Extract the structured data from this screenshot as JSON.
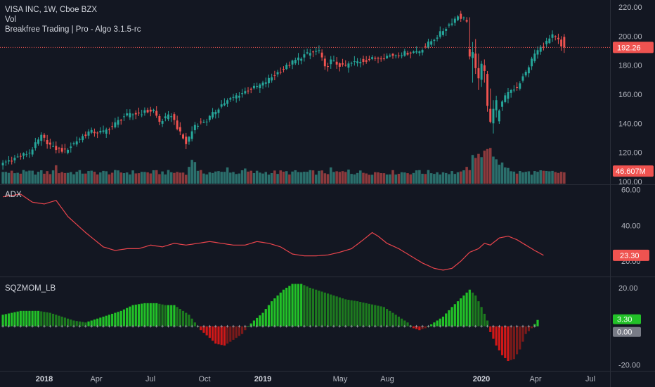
{
  "legend": {
    "symbol_line": "VISA INC, 1W, Cboe BZX",
    "vol_label": "Vol",
    "indicator_label": "Breakfree Trading | Pro - Algo 3.1.5-rc"
  },
  "colors": {
    "background": "#131722",
    "up": "#26a69a",
    "down": "#ef5350",
    "vol_up": "#2b6f6c",
    "vol_down": "#8c3a3d",
    "adx_line": "#e8444c",
    "sqz_strong_up": "#22c128",
    "sqz_weak_up": "#1d7a1f",
    "sqz_strong_down": "#d01818",
    "sqz_weak_down": "#7a1a1a",
    "axis_text": "#b2b5be",
    "separator": "#2a2e39"
  },
  "chart_data": [
    {
      "type": "candlestick",
      "pane": "price",
      "x_ticks": [
        "2018",
        "Apr",
        "Jul",
        "Oct",
        "2019",
        "May",
        "Aug",
        "2020",
        "Apr",
        "Jul"
      ],
      "y_ticks": [
        "220.00",
        "200.00",
        "180.00",
        "160.00",
        "140.00",
        "120.00",
        "100.00"
      ],
      "ylim": [
        98,
        222
      ],
      "last_price_label": "192.26",
      "last_price_value": 192.26,
      "weeks": 206,
      "anchors": [
        [
          0,
          112
        ],
        [
          10,
          120
        ],
        [
          14,
          131
        ],
        [
          18,
          123
        ],
        [
          22,
          121
        ],
        [
          26,
          128
        ],
        [
          30,
          134
        ],
        [
          35,
          134
        ],
        [
          38,
          138
        ],
        [
          42,
          145
        ],
        [
          47,
          147
        ],
        [
          52,
          149
        ],
        [
          54,
          141
        ],
        [
          58,
          146
        ],
        [
          61,
          133
        ],
        [
          63,
          126
        ],
        [
          66,
          139
        ],
        [
          70,
          142
        ],
        [
          75,
          153
        ],
        [
          80,
          159
        ],
        [
          84,
          163
        ],
        [
          89,
          167
        ],
        [
          94,
          175
        ],
        [
          99,
          182
        ],
        [
          103,
          187
        ],
        [
          108,
          190
        ],
        [
          110,
          178
        ],
        [
          112,
          183
        ],
        [
          116,
          179
        ],
        [
          120,
          182
        ],
        [
          125,
          184
        ],
        [
          130,
          186
        ],
        [
          136,
          188
        ],
        [
          142,
          190
        ],
        [
          148,
          200
        ],
        [
          152,
          208
        ],
        [
          155,
          214
        ],
        [
          158,
          211
        ],
        [
          160,
          198
        ],
        [
          162,
          176
        ],
        [
          165,
          152
        ],
        [
          167,
          135
        ],
        [
          169,
          150
        ],
        [
          172,
          162
        ],
        [
          175,
          165
        ],
        [
          178,
          175
        ],
        [
          181,
          188
        ],
        [
          184,
          194
        ],
        [
          187,
          200
        ],
        [
          189,
          197
        ],
        [
          190,
          192.26
        ]
      ],
      "crash_weeks": [
        [
          158,
          191,
          213,
          184,
          186
        ],
        [
          159,
          185,
          196,
          168,
          189
        ],
        [
          160,
          188,
          198,
          174,
          178
        ],
        [
          161,
          178,
          188,
          163,
          171
        ],
        [
          162,
          170,
          183,
          165,
          181
        ],
        [
          163,
          180,
          184,
          168,
          176
        ],
        [
          164,
          174,
          176,
          148,
          152
        ],
        [
          165,
          150,
          164,
          140,
          141
        ],
        [
          166,
          140,
          156,
          133,
          150
        ],
        [
          167,
          149,
          159,
          144,
          156
        ]
      ],
      "volume": {
        "ylim": [
          0,
          130
        ],
        "last_volume_label": "46.607M",
        "spikes": [
          [
            18,
            68
          ],
          [
            63,
            62
          ],
          [
            64,
            88
          ],
          [
            65,
            80
          ],
          [
            76,
            60
          ],
          [
            82,
            56
          ],
          [
            111,
            60
          ],
          [
            117,
            52
          ],
          [
            141,
            50
          ],
          [
            155,
            45
          ],
          [
            157,
            62
          ],
          [
            159,
            106
          ],
          [
            160,
            95
          ],
          [
            161,
            110
          ],
          [
            162,
            98
          ],
          [
            163,
            122
          ],
          [
            164,
            128
          ],
          [
            165,
            132
          ],
          [
            166,
            100
          ],
          [
            167,
            90
          ],
          [
            168,
            70
          ],
          [
            169,
            78
          ],
          [
            170,
            60
          ],
          [
            171,
            58
          ]
        ],
        "baseline": 38
      }
    },
    {
      "type": "line",
      "pane": "adx",
      "title": "ADX",
      "y_ticks": [
        "60.00",
        "40.00",
        "20.00"
      ],
      "ylim": [
        13,
        61
      ],
      "last_value_label": "23.30",
      "last_value": 23.3,
      "points": [
        [
          0,
          56
        ],
        [
          6,
          57.5
        ],
        [
          10,
          53
        ],
        [
          14,
          52
        ],
        [
          18,
          54
        ],
        [
          22,
          45
        ],
        [
          28,
          36
        ],
        [
          34,
          28
        ],
        [
          38,
          26
        ],
        [
          42,
          27
        ],
        [
          46,
          27
        ],
        [
          50,
          29
        ],
        [
          54,
          28
        ],
        [
          58,
          30
        ],
        [
          62,
          29
        ],
        [
          66,
          30
        ],
        [
          70,
          31
        ],
        [
          74,
          30
        ],
        [
          78,
          29
        ],
        [
          82,
          29
        ],
        [
          86,
          31
        ],
        [
          90,
          30
        ],
        [
          94,
          28
        ],
        [
          98,
          24
        ],
        [
          102,
          23
        ],
        [
          106,
          23
        ],
        [
          110,
          23.5
        ],
        [
          114,
          25
        ],
        [
          118,
          27
        ],
        [
          122,
          32
        ],
        [
          125,
          36
        ],
        [
          127,
          34
        ],
        [
          130,
          30
        ],
        [
          134,
          27
        ],
        [
          138,
          23
        ],
        [
          142,
          19
        ],
        [
          146,
          16
        ],
        [
          149,
          15
        ],
        [
          152,
          16
        ],
        [
          155,
          20
        ],
        [
          158,
          25
        ],
        [
          161,
          27
        ],
        [
          163,
          30
        ],
        [
          165,
          29
        ],
        [
          168,
          33
        ],
        [
          171,
          34
        ],
        [
          174,
          32
        ],
        [
          177,
          29
        ],
        [
          180,
          26
        ],
        [
          183,
          23.3
        ]
      ]
    },
    {
      "type": "bar",
      "pane": "squeeze-momentum",
      "title": "SQZMOM_LB",
      "y_ticks": [
        "20.00",
        "-20.00"
      ],
      "ylim": [
        -22,
        24
      ],
      "zero_label": "0.00",
      "last_value_label": "3.30",
      "last_value": 3.3,
      "points": [
        [
          0,
          6
        ],
        [
          6,
          8
        ],
        [
          12,
          8
        ],
        [
          16,
          7
        ],
        [
          20,
          5
        ],
        [
          24,
          3
        ],
        [
          28,
          2
        ],
        [
          32,
          4
        ],
        [
          36,
          6
        ],
        [
          40,
          8
        ],
        [
          44,
          11
        ],
        [
          48,
          12
        ],
        [
          52,
          12
        ],
        [
          55,
          11
        ],
        [
          58,
          11
        ],
        [
          61,
          8
        ],
        [
          63,
          6
        ],
        [
          65,
          2
        ],
        [
          66,
          0
        ],
        [
          67,
          -2
        ],
        [
          70,
          -6
        ],
        [
          72,
          -9
        ],
        [
          75,
          -10
        ],
        [
          78,
          -7
        ],
        [
          81,
          -4
        ],
        [
          83,
          0
        ],
        [
          85,
          3
        ],
        [
          88,
          7
        ],
        [
          91,
          13
        ],
        [
          95,
          19
        ],
        [
          98,
          22
        ],
        [
          101,
          22
        ],
        [
          104,
          20
        ],
        [
          108,
          18
        ],
        [
          112,
          16
        ],
        [
          116,
          14
        ],
        [
          120,
          13
        ],
        [
          123,
          12
        ],
        [
          126,
          11
        ],
        [
          129,
          10
        ],
        [
          131,
          8
        ],
        [
          133,
          6
        ],
        [
          135,
          4
        ],
        [
          137,
          2
        ],
        [
          139,
          -1
        ],
        [
          141,
          -2
        ],
        [
          143,
          -1
        ],
        [
          145,
          1
        ],
        [
          147,
          3
        ],
        [
          149,
          5
        ],
        [
          152,
          10
        ],
        [
          156,
          16
        ],
        [
          158,
          19
        ],
        [
          160,
          16
        ],
        [
          162,
          10
        ],
        [
          164,
          3
        ],
        [
          165,
          -3
        ],
        [
          167,
          -10
        ],
        [
          169,
          -15
        ],
        [
          171,
          -18
        ],
        [
          173,
          -17
        ],
        [
          175,
          -12
        ],
        [
          177,
          -4
        ],
        [
          179,
          -1
        ],
        [
          181,
          3.3
        ]
      ]
    }
  ]
}
